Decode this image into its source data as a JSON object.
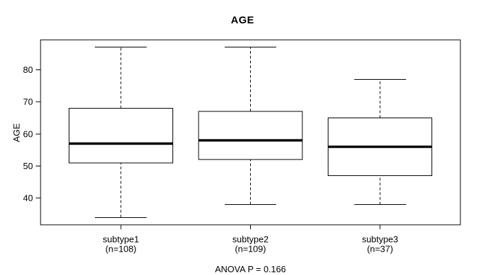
{
  "chart_data": {
    "type": "boxplot",
    "title": "AGE",
    "ylabel": "AGE",
    "xlabel": "",
    "annotation": "ANOVA P = 0.166",
    "anova_p": 0.166,
    "y_ticks": [
      40,
      50,
      60,
      70,
      80
    ],
    "ylim": [
      31.7,
      89.3
    ],
    "xlim": [
      0.38,
      3.62
    ],
    "box_width": 0.8,
    "grid": false,
    "legend": null,
    "colors": {
      "line": "#000000",
      "box_fill": "#ffffff",
      "background": "#ffffff",
      "text": "#000000"
    },
    "groups": [
      {
        "label": "subtype1",
        "sublabel": "(n=108)",
        "n": 108,
        "position": 1,
        "whisker_low": 34,
        "q1": 51,
        "median": 57,
        "q3": 68,
        "whisker_high": 87
      },
      {
        "label": "subtype2",
        "sublabel": "(n=109)",
        "n": 109,
        "position": 2,
        "whisker_low": 38,
        "q1": 52,
        "median": 58,
        "q3": 67,
        "whisker_high": 87
      },
      {
        "label": "subtype3",
        "sublabel": "(n=37)",
        "n": 37,
        "position": 3,
        "whisker_low": 38,
        "q1": 47,
        "median": 56,
        "q3": 65,
        "whisker_high": 77
      }
    ]
  }
}
